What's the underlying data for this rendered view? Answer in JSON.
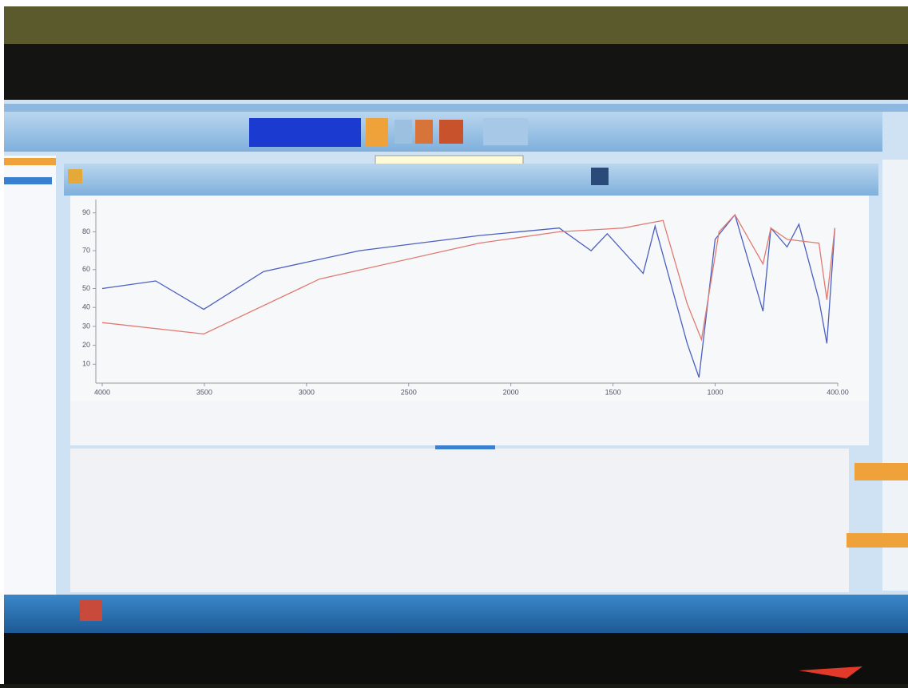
{
  "chart_data": {
    "type": "line",
    "xlim": [
      4000,
      400
    ],
    "xticks": [
      4000,
      3500,
      3000,
      2500,
      2000,
      1500,
      1000,
      {
        "value": 400,
        "label": "400.00"
      }
    ],
    "ylim": [
      0,
      100
    ],
    "yticks": [
      10,
      20,
      30,
      40,
      50,
      60,
      70,
      80,
      90
    ],
    "series": [
      {
        "color": "#4a5fc0",
        "x": [
          4000,
          3738,
          3503,
          3210,
          2741,
          2154,
          1763,
          1607,
          1528,
          1352,
          1294,
          1137,
          1079,
          1000,
          903,
          766,
          727,
          648,
          590,
          492,
          453,
          414
        ],
        "values": [
          50,
          54,
          39,
          59,
          70,
          78,
          82,
          70,
          79,
          58,
          83,
          21,
          3,
          76,
          89,
          38,
          82,
          72,
          84,
          44,
          21,
          82
        ]
      },
      {
        "color": "#e07a70",
        "x": [
          4000,
          3503,
          2936,
          2154,
          1763,
          1450,
          1352,
          1255,
          1137,
          1067,
          981,
          903,
          766,
          727,
          648,
          492,
          453,
          414
        ],
        "values": [
          32,
          26,
          55,
          74,
          80,
          82,
          84,
          86,
          42,
          23,
          80,
          89,
          63,
          82,
          76,
          74,
          44,
          82
        ]
      }
    ]
  }
}
